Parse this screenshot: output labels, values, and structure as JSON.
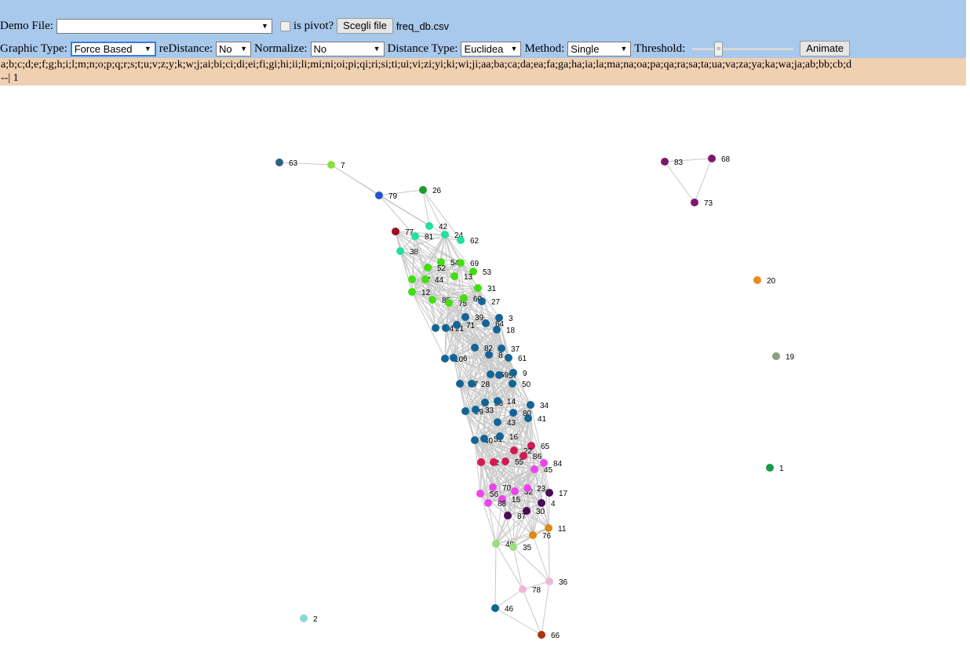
{
  "toolbar": {
    "demo_file_label": "Demo File:",
    "demo_file_value": "",
    "is_pivot_label": "is pivot?",
    "choose_file_button": "Scegli file",
    "file_name": "freq_db.csv",
    "graphic_type_label": "Graphic Type:",
    "graphic_type_value": "Force Based",
    "redistance_label": "reDistance:",
    "redistance_value": "No",
    "normalize_label": "Normalize:",
    "normalize_value": "No",
    "distance_type_label": "Distance Type:",
    "distance_type_value": "Euclidea",
    "method_label": "Method:",
    "method_value": "Single",
    "threshold_label": "Threshold:",
    "threshold_level": 0.24,
    "animate_button": "Animate"
  },
  "attributes": {
    "line1": "a;b;c;d;e;f;g;h;i;l;m;n;o;p;q;r;s;t;u;v;z;y;k;w;j;ai;bi;ci;di;ei;fi;gi;hi;ii;li;mi;ni;oi;pi;qi;ri;si;ti;ui;vi;zi;yi;ki;wi;ji;aa;ba;ca;da;ea;fa;ga;ha;ia;la;ma;na;oa;pa;qa;ra;sa;ta;ua;va;za;ya;ka;wa;ja;ab;bb;cb;d",
    "line2": "--| 1"
  },
  "graph": {
    "nodes": [
      {
        "id": "63",
        "color": "#2f5f7f"
      },
      {
        "id": "7",
        "color": "#88e03a"
      },
      {
        "id": "79",
        "color": "#2255cc"
      },
      {
        "id": "26",
        "color": "#1e9a2e"
      },
      {
        "id": "42",
        "color": "#22e0a0"
      },
      {
        "id": "81",
        "color": "#22e0a0"
      },
      {
        "id": "24",
        "color": "#22e0a0"
      },
      {
        "id": "62",
        "color": "#22e0a0"
      },
      {
        "id": "77",
        "color": "#9a1020"
      },
      {
        "id": "38",
        "color": "#22e0a0"
      },
      {
        "id": "54",
        "color": "#44dd11"
      },
      {
        "id": "69",
        "color": "#44dd11"
      },
      {
        "id": "52",
        "color": "#44dd11"
      },
      {
        "id": "53",
        "color": "#44dd11"
      },
      {
        "id": "67",
        "color": "#44dd11"
      },
      {
        "id": "44",
        "color": "#44dd11"
      },
      {
        "id": "13",
        "color": "#44dd11"
      },
      {
        "id": "31",
        "color": "#44dd11"
      },
      {
        "id": "12",
        "color": "#44dd11"
      },
      {
        "id": "85",
        "color": "#44dd11"
      },
      {
        "id": "75",
        "color": "#44dd11"
      },
      {
        "id": "60",
        "color": "#44dd11"
      },
      {
        "id": "27",
        "color": "#136496"
      },
      {
        "id": "39",
        "color": "#136496"
      },
      {
        "id": "3",
        "color": "#136496"
      },
      {
        "id": "74",
        "color": "#136496"
      },
      {
        "id": "21",
        "color": "#136496"
      },
      {
        "id": "71",
        "color": "#136496"
      },
      {
        "id": "64",
        "color": "#136496"
      },
      {
        "id": "18",
        "color": "#136496"
      },
      {
        "id": "82",
        "color": "#136496"
      },
      {
        "id": "37",
        "color": "#136496"
      },
      {
        "id": "8",
        "color": "#136496"
      },
      {
        "id": "61",
        "color": "#136496"
      },
      {
        "id": "10",
        "color": "#136496"
      },
      {
        "id": "6",
        "color": "#136496"
      },
      {
        "id": "59",
        "color": "#136496"
      },
      {
        "id": "57",
        "color": "#136496"
      },
      {
        "id": "9",
        "color": "#136496"
      },
      {
        "id": "47",
        "color": "#136496"
      },
      {
        "id": "28",
        "color": "#136496"
      },
      {
        "id": "50",
        "color": "#136496"
      },
      {
        "id": "58",
        "color": "#136496"
      },
      {
        "id": "14",
        "color": "#136496"
      },
      {
        "id": "34",
        "color": "#136496"
      },
      {
        "id": "29",
        "color": "#136496"
      },
      {
        "id": "33",
        "color": "#136496"
      },
      {
        "id": "80",
        "color": "#136496"
      },
      {
        "id": "41",
        "color": "#136496"
      },
      {
        "id": "43",
        "color": "#136496"
      },
      {
        "id": "40",
        "color": "#136496"
      },
      {
        "id": "51",
        "color": "#136496"
      },
      {
        "id": "16",
        "color": "#136496"
      },
      {
        "id": "65",
        "color": "#d41a55"
      },
      {
        "id": "22",
        "color": "#d41a55"
      },
      {
        "id": "86",
        "color": "#d41a55"
      },
      {
        "id": "72",
        "color": "#d41a55"
      },
      {
        "id": "5",
        "color": "#d41a55"
      },
      {
        "id": "55",
        "color": "#d41a55"
      },
      {
        "id": "84",
        "color": "#ee44ee"
      },
      {
        "id": "45",
        "color": "#ee44ee"
      },
      {
        "id": "70",
        "color": "#ee44ee"
      },
      {
        "id": "32",
        "color": "#ee44ee"
      },
      {
        "id": "23",
        "color": "#ee44ee"
      },
      {
        "id": "17",
        "color": "#4a0a55"
      },
      {
        "id": "56",
        "color": "#ee44ee"
      },
      {
        "id": "15",
        "color": "#ee44ee"
      },
      {
        "id": "88",
        "color": "#ee44ee"
      },
      {
        "id": "4",
        "color": "#4a0a55"
      },
      {
        "id": "30",
        "color": "#4a0a55"
      },
      {
        "id": "87",
        "color": "#4a0a55"
      },
      {
        "id": "11",
        "color": "#dd8a11"
      },
      {
        "id": "76",
        "color": "#dd8a11"
      },
      {
        "id": "49",
        "color": "#99e07a"
      },
      {
        "id": "35",
        "color": "#99e07a"
      },
      {
        "id": "36",
        "color": "#f0b8d8"
      },
      {
        "id": "78",
        "color": "#f0b8d8"
      },
      {
        "id": "46",
        "color": "#136496"
      },
      {
        "id": "66",
        "color": "#aa3311"
      },
      {
        "id": "2",
        "color": "#8ad6d6"
      },
      {
        "id": "83",
        "color": "#7a1a6a"
      },
      {
        "id": "68",
        "color": "#7a1a6a"
      },
      {
        "id": "73",
        "color": "#7a1a6a"
      },
      {
        "id": "20",
        "color": "#e88a22"
      },
      {
        "id": "19",
        "color": "#8aa07a"
      },
      {
        "id": "1",
        "color": "#1a9a4a"
      }
    ]
  }
}
